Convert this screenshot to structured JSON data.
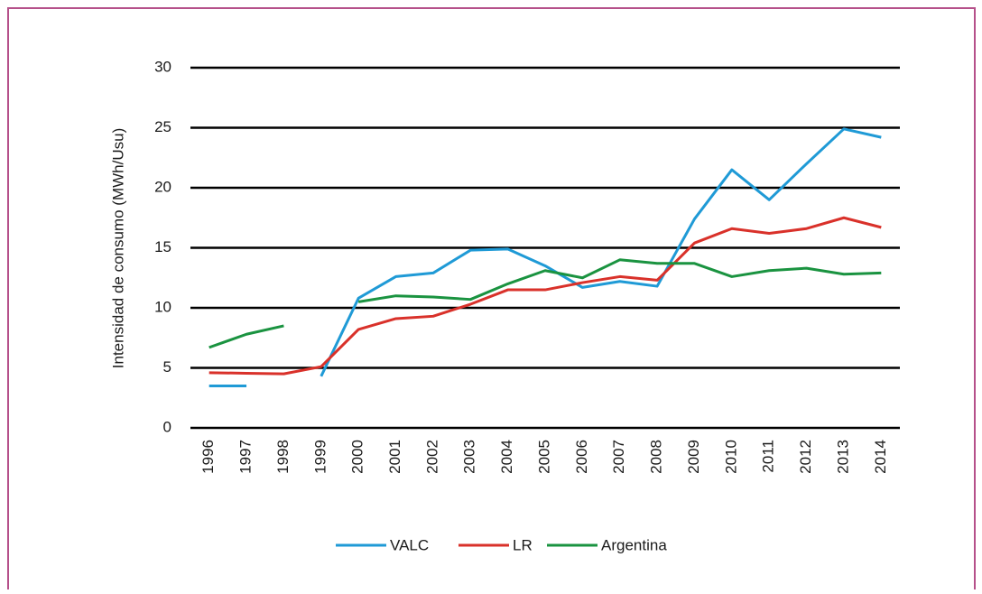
{
  "chart_data": {
    "type": "line",
    "y_label": "Intensidad de consumo (MWh/Usu)",
    "categories": [
      "1996",
      "1997",
      "1998",
      "1999",
      "2000",
      "2001",
      "2002",
      "2003",
      "2004",
      "2005",
      "2006",
      "2007",
      "2008",
      "2009",
      "2010",
      "2011",
      "2012",
      "2013",
      "2014"
    ],
    "series": [
      {
        "name": "VALC",
        "color": "#1f9ad6",
        "values": [
          3.5,
          3.5,
          null,
          4.3,
          10.8,
          12.6,
          12.9,
          14.8,
          14.9,
          13.5,
          11.7,
          12.2,
          11.8,
          17.4,
          21.5,
          19.0,
          22.0,
          24.9,
          24.2
        ]
      },
      {
        "name": "LR",
        "color": "#d9312a",
        "values": [
          4.6,
          4.55,
          4.5,
          5.1,
          8.2,
          9.1,
          9.3,
          10.3,
          11.5,
          11.5,
          12.1,
          12.6,
          12.3,
          15.4,
          16.6,
          16.2,
          16.6,
          17.5,
          16.7
        ]
      },
      {
        "name": "Argentina",
        "color": "#1a9340",
        "values": [
          6.7,
          7.8,
          8.5,
          null,
          10.5,
          11.0,
          10.9,
          10.7,
          12.0,
          13.1,
          12.5,
          14.0,
          13.7,
          13.7,
          12.6,
          13.1,
          13.3,
          12.8,
          12.9
        ]
      }
    ],
    "ylim": [
      0,
      30
    ],
    "yticks": [
      0,
      5,
      10,
      15,
      20,
      25,
      30
    ],
    "grid": true,
    "legend": "bottom"
  }
}
